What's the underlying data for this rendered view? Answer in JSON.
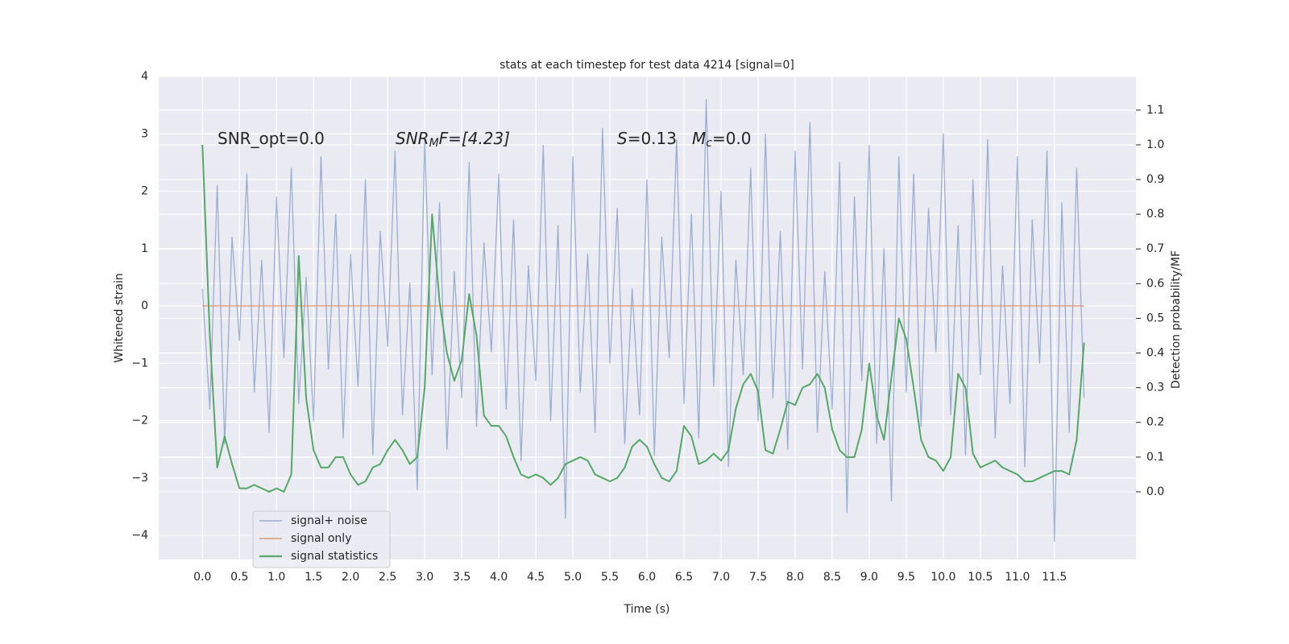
{
  "chart_data": {
    "type": "line",
    "title": "stats at each timestep for test data 4214 [signal=0]",
    "xlabel": "Time (s)",
    "ylabel": "Whitened strain",
    "y2label": "Detection probability/MF",
    "annotations": [
      {
        "text": "SNR_opt=0.0"
      },
      {
        "base": "SNR",
        "sub": "M",
        "rest": "F=[4.23]"
      },
      {
        "base": "S",
        "rest": "=0.13"
      },
      {
        "base": "M",
        "sub": "c",
        "rest": "=0.0"
      }
    ],
    "x": [
      0.0,
      0.1,
      0.2,
      0.3,
      0.4,
      0.5,
      0.6,
      0.7,
      0.8,
      0.9,
      1.0,
      1.1,
      1.2,
      1.3,
      1.4,
      1.5,
      1.6,
      1.7,
      1.8,
      1.9,
      2.0,
      2.1,
      2.2,
      2.3,
      2.4,
      2.5,
      2.6,
      2.7,
      2.8,
      2.9,
      3.0,
      3.1,
      3.2,
      3.3,
      3.4,
      3.5,
      3.6,
      3.7,
      3.8,
      3.9,
      4.0,
      4.1,
      4.2,
      4.3,
      4.4,
      4.5,
      4.6,
      4.7,
      4.8,
      4.9,
      5.0,
      5.1,
      5.2,
      5.3,
      5.4,
      5.5,
      5.6,
      5.7,
      5.8,
      5.9,
      6.0,
      6.1,
      6.2,
      6.3,
      6.4,
      6.5,
      6.6,
      6.7,
      6.8,
      6.9,
      7.0,
      7.1,
      7.2,
      7.3,
      7.4,
      7.5,
      7.6,
      7.7,
      7.8,
      7.9,
      8.0,
      8.1,
      8.2,
      8.3,
      8.4,
      8.5,
      8.6,
      8.7,
      8.8,
      8.9,
      9.0,
      9.1,
      9.2,
      9.3,
      9.4,
      9.5,
      9.6,
      9.7,
      9.8,
      9.9,
      10.0,
      10.1,
      10.2,
      10.3,
      10.4,
      10.5,
      10.6,
      10.7,
      10.8,
      10.9,
      11.0,
      11.1,
      11.2,
      11.3,
      11.4,
      11.5,
      11.6,
      11.7,
      11.8,
      11.9
    ],
    "series": [
      {
        "name": "signal+ noise",
        "color": "#4c72b0",
        "values": [
          0.3,
          -1.8,
          2.1,
          -2.4,
          1.2,
          -0.6,
          2.3,
          -1.5,
          0.8,
          -2.2,
          1.9,
          -0.9,
          2.4,
          -1.7,
          0.5,
          -2.0,
          2.6,
          -1.1,
          1.6,
          -2.3,
          0.9,
          -1.4,
          2.2,
          -2.6,
          1.3,
          -0.7,
          2.7,
          -1.9,
          0.4,
          -3.2,
          2.9,
          -1.2,
          1.8,
          -2.5,
          0.6,
          -1.6,
          2.5,
          -2.1,
          1.1,
          -0.8,
          2.3,
          -1.8,
          1.5,
          -2.7,
          0.7,
          -1.3,
          2.8,
          -2.0,
          1.4,
          -3.7,
          2.6,
          -1.5,
          0.9,
          -2.2,
          3.1,
          -1.0,
          1.7,
          -2.4,
          0.3,
          -1.9,
          2.2,
          -2.6,
          1.2,
          -0.9,
          2.9,
          -1.7,
          1.6,
          -2.3,
          3.6,
          -1.4,
          2.0,
          -2.8,
          0.8,
          -1.2,
          2.4,
          -2.0,
          3.0,
          -1.6,
          1.3,
          -2.5,
          2.7,
          -1.1,
          3.2,
          -2.2,
          0.6,
          -1.8,
          2.5,
          -3.6,
          1.9,
          -1.3,
          2.8,
          -2.4,
          1.0,
          -3.4,
          2.6,
          -1.5,
          2.3,
          -2.1,
          1.7,
          -0.8,
          3.0,
          -1.9,
          1.4,
          -2.6,
          2.2,
          -1.2,
          2.9,
          -2.3,
          0.7,
          -1.7,
          2.6,
          -2.8,
          1.5,
          -1.0,
          2.7,
          -4.1,
          1.8,
          -2.2,
          2.4,
          -1.6
        ]
      },
      {
        "name": "signal only",
        "color": "#dd8452",
        "values": [
          0,
          0,
          0,
          0,
          0,
          0,
          0,
          0,
          0,
          0,
          0,
          0,
          0,
          0,
          0,
          0,
          0,
          0,
          0,
          0,
          0,
          0,
          0,
          0,
          0,
          0,
          0,
          0,
          0,
          0,
          0,
          0,
          0,
          0,
          0,
          0,
          0,
          0,
          0,
          0,
          0,
          0,
          0,
          0,
          0,
          0,
          0,
          0,
          0,
          0,
          0,
          0,
          0,
          0,
          0,
          0,
          0,
          0,
          0,
          0,
          0,
          0,
          0,
          0,
          0,
          0,
          0,
          0,
          0,
          0,
          0,
          0,
          0,
          0,
          0,
          0,
          0,
          0,
          0,
          0,
          0,
          0,
          0,
          0,
          0,
          0,
          0,
          0,
          0,
          0,
          0,
          0,
          0,
          0,
          0,
          0,
          0,
          0,
          0,
          0,
          0,
          0,
          0,
          0,
          0,
          0,
          0,
          0,
          0,
          0,
          0,
          0,
          0,
          0,
          0,
          0,
          0,
          0,
          0,
          0
        ]
      },
      {
        "name": "signal statistics",
        "color": "#55a868",
        "axis": "y2",
        "values": [
          1.0,
          0.45,
          0.07,
          0.16,
          0.08,
          0.01,
          0.01,
          0.02,
          0.01,
          0.0,
          0.01,
          0.0,
          0.05,
          0.68,
          0.27,
          0.12,
          0.07,
          0.07,
          0.1,
          0.1,
          0.05,
          0.02,
          0.03,
          0.07,
          0.08,
          0.12,
          0.15,
          0.12,
          0.08,
          0.1,
          0.3,
          0.8,
          0.55,
          0.4,
          0.32,
          0.38,
          0.57,
          0.45,
          0.22,
          0.19,
          0.19,
          0.16,
          0.1,
          0.05,
          0.04,
          0.05,
          0.04,
          0.02,
          0.04,
          0.08,
          0.09,
          0.1,
          0.09,
          0.05,
          0.04,
          0.03,
          0.04,
          0.07,
          0.13,
          0.15,
          0.13,
          0.08,
          0.04,
          0.03,
          0.06,
          0.19,
          0.16,
          0.08,
          0.09,
          0.11,
          0.09,
          0.12,
          0.24,
          0.31,
          0.34,
          0.29,
          0.12,
          0.11,
          0.18,
          0.26,
          0.25,
          0.3,
          0.31,
          0.34,
          0.3,
          0.18,
          0.12,
          0.1,
          0.1,
          0.18,
          0.37,
          0.22,
          0.15,
          0.33,
          0.5,
          0.44,
          0.3,
          0.15,
          0.1,
          0.09,
          0.06,
          0.1,
          0.34,
          0.3,
          0.11,
          0.07,
          0.08,
          0.09,
          0.07,
          0.06,
          0.05,
          0.03,
          0.03,
          0.04,
          0.05,
          0.06,
          0.06,
          0.05,
          0.15,
          0.43
        ]
      }
    ],
    "xlim": [
      -0.59,
      12.6
    ],
    "xticks": [
      {
        "value": 0,
        "label": "0.0"
      },
      0.5,
      {
        "value": 1,
        "label": "1.0"
      },
      1.5,
      {
        "value": 2,
        "label": "2.0"
      },
      2.5,
      {
        "value": 3,
        "label": "3.0"
      },
      3.5,
      {
        "value": 4,
        "label": "4.0"
      },
      4.5,
      {
        "value": 5,
        "label": "5.0"
      },
      5.5,
      {
        "value": 6,
        "label": "6.0"
      },
      6.5,
      {
        "value": 7,
        "label": "7.0"
      },
      7.5,
      {
        "value": 8,
        "label": "8.0"
      },
      8.5,
      {
        "value": 9,
        "label": "9.0"
      },
      9.5,
      {
        "value": 10,
        "label": "10.0"
      },
      10.5,
      {
        "value": 11,
        "label": "11.0"
      },
      11.5
    ],
    "ylim": [
      -4.42,
      4.0
    ],
    "yticks": [
      {
        "value": -4,
        "label": "−4"
      },
      {
        "value": -3,
        "label": "−3"
      },
      {
        "value": -2,
        "label": "−2"
      },
      {
        "value": -1,
        "label": "−1"
      },
      0,
      1,
      2,
      3,
      4
    ],
    "y2lim": [
      -0.195,
      1.197
    ],
    "y2ticks": [
      {
        "value": 0,
        "label": "0.0"
      },
      0.1,
      0.2,
      0.3,
      0.4,
      0.5,
      0.6,
      0.7,
      0.8,
      0.9,
      {
        "value": 1,
        "label": "1.0"
      },
      1.1
    ],
    "grid": true,
    "legend": "lower left"
  }
}
